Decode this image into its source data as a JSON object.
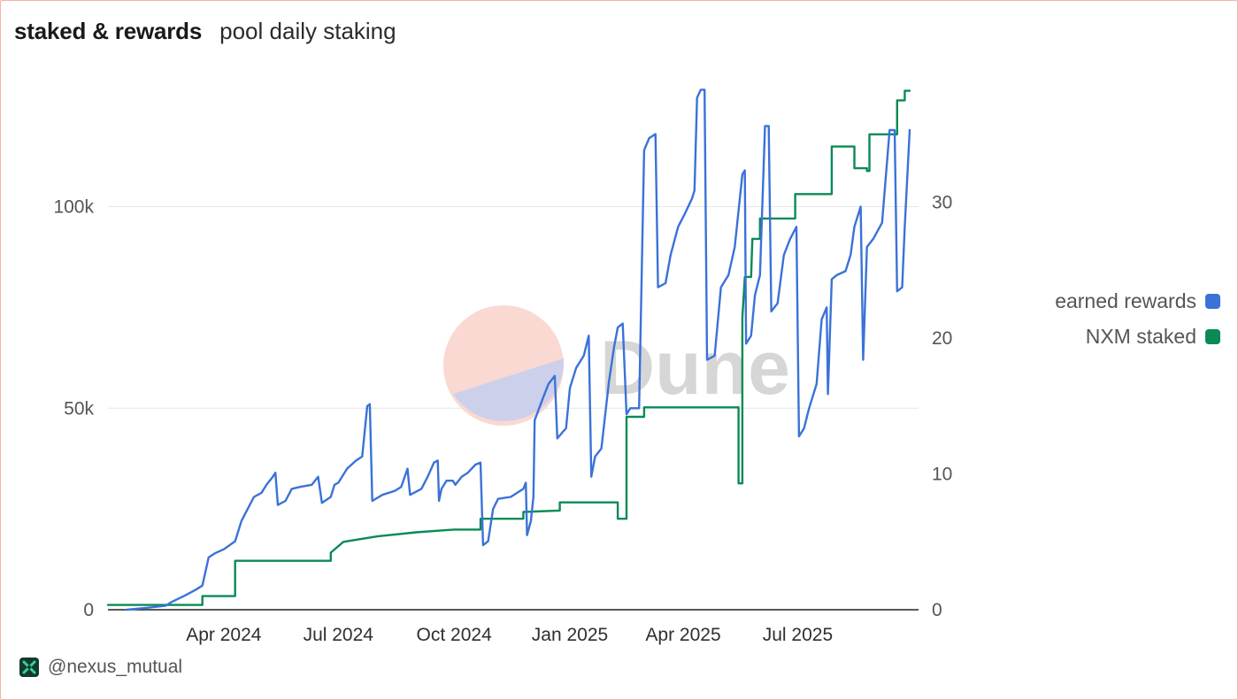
{
  "header": {
    "title": "staked & rewards",
    "subtitle": "pool daily staking"
  },
  "watermark": "Dune",
  "footer": {
    "handle": "@nexus_mutual",
    "icon": "nexus-logo-icon"
  },
  "colors": {
    "earned_rewards": "#3a72d8",
    "nxm_staked": "#0a8a55",
    "grid": "#e6e6e6",
    "frame": "#f3b3a6"
  },
  "legend": {
    "items": [
      {
        "label": "earned rewards",
        "color": "#3a72d8"
      },
      {
        "label": "NXM staked",
        "color": "#0a8a55"
      }
    ]
  },
  "chart_data": {
    "type": "line",
    "grid": "horizontal",
    "legend_position": "right",
    "x_ticks": [
      "Apr 2024",
      "Jul 2024",
      "Oct 2024",
      "Jan 2025",
      "Apr 2025",
      "Jul 2025"
    ],
    "y_left": {
      "ticks": [
        "0",
        "50k",
        "100k"
      ],
      "range": [
        0,
        130000
      ]
    },
    "y_right": {
      "ticks": [
        "0",
        "10",
        "20",
        "30"
      ],
      "range": [
        0,
        39.5
      ]
    },
    "series": [
      {
        "name": "earned rewards",
        "axis": "left",
        "color": "#3a72d8",
        "points": [
          [
            "2024-01-15",
            0
          ],
          [
            "2024-02-01",
            500
          ],
          [
            "2024-02-15",
            1000
          ],
          [
            "2024-02-20",
            2000
          ],
          [
            "2024-03-01",
            3500
          ],
          [
            "2024-03-10",
            5000
          ],
          [
            "2024-03-15",
            6000
          ],
          [
            "2024-03-20",
            13000
          ],
          [
            "2024-03-25",
            14000
          ],
          [
            "2024-04-01",
            15000
          ],
          [
            "2024-04-10",
            17000
          ],
          [
            "2024-04-15",
            22000
          ],
          [
            "2024-04-20",
            25000
          ],
          [
            "2024-04-25",
            28000
          ],
          [
            "2024-05-01",
            29000
          ],
          [
            "2024-05-05",
            31000
          ],
          [
            "2024-05-10",
            33000
          ],
          [
            "2024-05-12",
            34000
          ],
          [
            "2024-05-14",
            26000
          ],
          [
            "2024-05-20",
            27000
          ],
          [
            "2024-05-25",
            30000
          ],
          [
            "2024-06-01",
            30500
          ],
          [
            "2024-06-10",
            31000
          ],
          [
            "2024-06-15",
            33000
          ],
          [
            "2024-06-18",
            26500
          ],
          [
            "2024-06-25",
            28000
          ],
          [
            "2024-06-28",
            31000
          ],
          [
            "2024-07-01",
            31500
          ],
          [
            "2024-07-08",
            35000
          ],
          [
            "2024-07-15",
            37000
          ],
          [
            "2024-07-20",
            38000
          ],
          [
            "2024-07-24",
            50500
          ],
          [
            "2024-07-26",
            51000
          ],
          [
            "2024-07-28",
            27000
          ],
          [
            "2024-08-05",
            28500
          ],
          [
            "2024-08-15",
            29500
          ],
          [
            "2024-08-20",
            30500
          ],
          [
            "2024-08-25",
            35000
          ],
          [
            "2024-08-27",
            28500
          ],
          [
            "2024-09-05",
            30000
          ],
          [
            "2024-09-10",
            33000
          ],
          [
            "2024-09-15",
            36500
          ],
          [
            "2024-09-18",
            37000
          ],
          [
            "2024-09-19",
            27000
          ],
          [
            "2024-09-21",
            30000
          ],
          [
            "2024-09-25",
            32000
          ],
          [
            "2024-09-30",
            32000
          ],
          [
            "2024-10-02",
            31000
          ],
          [
            "2024-10-07",
            33000
          ],
          [
            "2024-10-12",
            34000
          ],
          [
            "2024-10-18",
            36000
          ],
          [
            "2024-10-22",
            36500
          ],
          [
            "2024-10-24",
            16000
          ],
          [
            "2024-10-28",
            17000
          ],
          [
            "2024-11-01",
            25000
          ],
          [
            "2024-11-05",
            27500
          ],
          [
            "2024-11-15",
            28000
          ],
          [
            "2024-11-25",
            30000
          ],
          [
            "2024-11-27",
            31500
          ],
          [
            "2024-11-28",
            18500
          ],
          [
            "2024-12-01",
            22000
          ],
          [
            "2024-12-03",
            28000
          ],
          [
            "2024-12-04",
            47000
          ],
          [
            "2024-12-10",
            52000
          ],
          [
            "2024-12-15",
            56000
          ],
          [
            "2024-12-20",
            58000
          ],
          [
            "2024-12-22",
            42500
          ],
          [
            "2024-12-26",
            44000
          ],
          [
            "2024-12-29",
            45000
          ],
          [
            "2025-01-01",
            55000
          ],
          [
            "2025-01-06",
            60000
          ],
          [
            "2025-01-12",
            63000
          ],
          [
            "2025-01-16",
            68000
          ],
          [
            "2025-01-18",
            33000
          ],
          [
            "2025-01-21",
            38000
          ],
          [
            "2025-01-26",
            40000
          ],
          [
            "2025-02-01",
            56500
          ],
          [
            "2025-02-05",
            65000
          ],
          [
            "2025-02-08",
            70000
          ],
          [
            "2025-02-12",
            71000
          ],
          [
            "2025-02-15",
            48500
          ],
          [
            "2025-02-18",
            50000
          ],
          [
            "2025-02-25",
            50000
          ],
          [
            "2025-03-01",
            114000
          ],
          [
            "2025-03-05",
            117000
          ],
          [
            "2025-03-10",
            118000
          ],
          [
            "2025-03-12",
            80000
          ],
          [
            "2025-03-18",
            81000
          ],
          [
            "2025-03-22",
            88000
          ],
          [
            "2025-03-28",
            95000
          ],
          [
            "2025-04-02",
            98000
          ],
          [
            "2025-04-08",
            102000
          ],
          [
            "2025-04-10",
            104000
          ],
          [
            "2025-04-12",
            127000
          ],
          [
            "2025-04-15",
            129000
          ],
          [
            "2025-04-18",
            129000
          ],
          [
            "2025-04-20",
            62000
          ],
          [
            "2025-04-26",
            63000
          ],
          [
            "2025-05-01",
            80000
          ],
          [
            "2025-05-07",
            83000
          ],
          [
            "2025-05-12",
            90000
          ],
          [
            "2025-05-18",
            108000
          ],
          [
            "2025-05-20",
            109000
          ],
          [
            "2025-05-21",
            66000
          ],
          [
            "2025-05-25",
            68000
          ],
          [
            "2025-05-28",
            78000
          ],
          [
            "2025-06-01",
            83000
          ],
          [
            "2025-06-05",
            120000
          ],
          [
            "2025-06-08",
            120000
          ],
          [
            "2025-06-10",
            74000
          ],
          [
            "2025-06-15",
            76000
          ],
          [
            "2025-06-20",
            88000
          ],
          [
            "2025-06-25",
            92000
          ],
          [
            "2025-06-30",
            95000
          ],
          [
            "2025-07-02",
            43000
          ],
          [
            "2025-07-06",
            45000
          ],
          [
            "2025-07-10",
            50000
          ],
          [
            "2025-07-16",
            56000
          ],
          [
            "2025-07-20",
            72000
          ],
          [
            "2025-07-24",
            75000
          ],
          [
            "2025-07-25",
            53500
          ],
          [
            "2025-07-28",
            82000
          ],
          [
            "2025-08-01",
            83000
          ],
          [
            "2025-08-08",
            84000
          ],
          [
            "2025-08-12",
            88000
          ],
          [
            "2025-08-15",
            95000
          ],
          [
            "2025-08-20",
            100000
          ],
          [
            "2025-08-22",
            62000
          ],
          [
            "2025-08-25",
            90000
          ],
          [
            "2025-08-30",
            92000
          ],
          [
            "2025-09-06",
            96000
          ],
          [
            "2025-09-12",
            119000
          ],
          [
            "2025-09-16",
            119000
          ],
          [
            "2025-09-18",
            79000
          ],
          [
            "2025-09-22",
            80000
          ],
          [
            "2025-09-24",
            95000
          ],
          [
            "2025-09-28",
            119000
          ]
        ]
      },
      {
        "name": "NXM staked",
        "axis": "right",
        "color": "#0a8a55",
        "points": [
          [
            "2023-12-31",
            0.35
          ],
          [
            "2024-03-15",
            0.35
          ],
          [
            "2024-03-15",
            1
          ],
          [
            "2024-04-10",
            1
          ],
          [
            "2024-04-10",
            3.6
          ],
          [
            "2024-06-25",
            3.6
          ],
          [
            "2024-06-25",
            4.2
          ],
          [
            "2024-07-05",
            5
          ],
          [
            "2024-08-01",
            5.4
          ],
          [
            "2024-09-01",
            5.7
          ],
          [
            "2024-10-01",
            5.9
          ],
          [
            "2024-10-22",
            5.9
          ],
          [
            "2024-10-22",
            6.7
          ],
          [
            "2024-11-25",
            6.7
          ],
          [
            "2024-11-25",
            7.2
          ],
          [
            "2024-12-24",
            7.3
          ],
          [
            "2024-12-24",
            7.9
          ],
          [
            "2025-02-08",
            7.9
          ],
          [
            "2025-02-08",
            6.7
          ],
          [
            "2025-02-15",
            6.7
          ],
          [
            "2025-02-15",
            14.2
          ],
          [
            "2025-03-01",
            14.2
          ],
          [
            "2025-03-01",
            14.9
          ],
          [
            "2025-05-15",
            14.9
          ],
          [
            "2025-05-15",
            9.3
          ],
          [
            "2025-05-18",
            9.3
          ],
          [
            "2025-05-18",
            21.5
          ],
          [
            "2025-05-20",
            24.5
          ],
          [
            "2025-05-25",
            24.5
          ],
          [
            "2025-05-26",
            27.3
          ],
          [
            "2025-06-01",
            27.3
          ],
          [
            "2025-06-01",
            28.8
          ],
          [
            "2025-06-29",
            28.8
          ],
          [
            "2025-06-29",
            30.6
          ],
          [
            "2025-07-28",
            30.6
          ],
          [
            "2025-07-28",
            34.1
          ],
          [
            "2025-08-15",
            34.1
          ],
          [
            "2025-08-15",
            32.5
          ],
          [
            "2025-08-25",
            32.5
          ],
          [
            "2025-08-25",
            32.3
          ],
          [
            "2025-08-27",
            32.3
          ],
          [
            "2025-08-27",
            35
          ],
          [
            "2025-09-18",
            35
          ],
          [
            "2025-09-18",
            37.5
          ],
          [
            "2025-09-24",
            37.5
          ],
          [
            "2025-09-24",
            38.2
          ],
          [
            "2025-09-28",
            38.2
          ]
        ]
      }
    ]
  }
}
